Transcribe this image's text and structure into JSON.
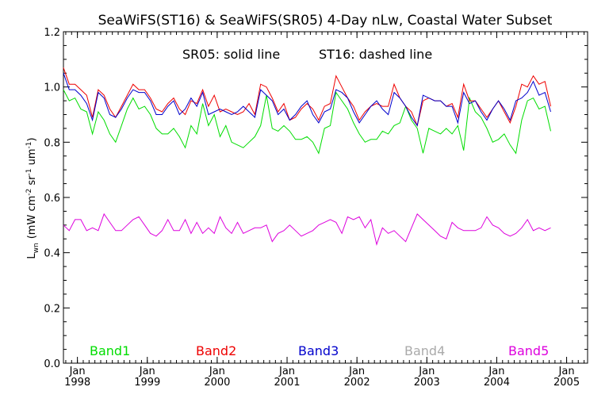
{
  "chart_data": {
    "type": "line",
    "title": "SeaWiFS(ST16) & SeaWiFS(SR05) 4-Day nLw, Coastal Water Subset",
    "annotation_solid": "SR05: solid line",
    "annotation_dashed": "ST16: dashed line",
    "ylabel": "L_wn (mW cm^-2 sr^-1 um^-1)",
    "ylabel_parts": {
      "L": "L",
      "wn": "wn",
      "unit_a": "(mW cm",
      "e2": "-2",
      "unit_b": " sr",
      "e1a": "-1",
      "unit_c": " um",
      "e1b": "-1",
      "close": ")"
    },
    "xlim": [
      1997.8,
      2005.3
    ],
    "ylim": [
      0.0,
      1.2
    ],
    "yticks": [
      "0.0",
      "0.2",
      "0.4",
      "0.6",
      "0.8",
      "1.0",
      "1.2"
    ],
    "ytick_values": [
      0.0,
      0.2,
      0.4,
      0.6,
      0.8,
      1.0,
      1.2
    ],
    "xticks_month": [
      "Jan",
      "Jan",
      "Jan",
      "Jan",
      "Jan",
      "Jan",
      "Jan",
      "Jan"
    ],
    "xticks_year": [
      "1998",
      "1999",
      "2000",
      "2001",
      "2002",
      "2003",
      "2004",
      "2005"
    ],
    "xtick_values": [
      1998,
      1999,
      2000,
      2001,
      2002,
      2003,
      2004,
      2005
    ],
    "x_start": 1997.8,
    "x_step": 0.083,
    "series": [
      {
        "name": "Band1",
        "color": "#00dd00",
        "values": [
          0.99,
          0.95,
          0.96,
          0.92,
          0.91,
          0.83,
          0.91,
          0.88,
          0.83,
          0.8,
          0.86,
          0.92,
          0.96,
          0.92,
          0.93,
          0.9,
          0.85,
          0.83,
          0.83,
          0.85,
          0.82,
          0.78,
          0.86,
          0.83,
          0.94,
          0.86,
          0.9,
          0.82,
          0.86,
          0.8,
          0.79,
          0.78,
          0.8,
          0.82,
          0.86,
          0.97,
          0.85,
          0.84,
          0.86,
          0.84,
          0.81,
          0.81,
          0.82,
          0.8,
          0.76,
          0.85,
          0.86,
          0.98,
          0.95,
          0.92,
          0.87,
          0.83,
          0.8,
          0.81,
          0.81,
          0.84,
          0.83,
          0.86,
          0.87,
          0.93,
          0.88,
          0.85,
          0.76,
          0.85,
          0.84,
          0.83,
          0.85,
          0.83,
          0.86,
          0.77,
          0.96,
          0.91,
          0.89,
          0.85,
          0.8,
          0.81,
          0.83,
          0.79,
          0.76,
          0.88,
          0.95,
          0.96,
          0.92,
          0.93,
          0.84
        ]
      },
      {
        "name": "Band2",
        "color": "#ee0000",
        "values": [
          1.07,
          1.01,
          1.01,
          0.99,
          0.97,
          0.89,
          0.99,
          0.97,
          0.92,
          0.89,
          0.93,
          0.97,
          1.01,
          0.99,
          0.99,
          0.96,
          0.92,
          0.91,
          0.94,
          0.96,
          0.92,
          0.9,
          0.95,
          0.94,
          0.99,
          0.93,
          0.97,
          0.91,
          0.92,
          0.91,
          0.9,
          0.91,
          0.94,
          0.9,
          1.01,
          1.0,
          0.96,
          0.91,
          0.94,
          0.88,
          0.89,
          0.92,
          0.94,
          0.92,
          0.88,
          0.93,
          0.94,
          1.04,
          1.0,
          0.96,
          0.93,
          0.88,
          0.91,
          0.93,
          0.94,
          0.93,
          0.93,
          1.01,
          0.96,
          0.93,
          0.91,
          0.86,
          0.95,
          0.96,
          0.95,
          0.95,
          0.93,
          0.94,
          0.89,
          1.01,
          0.95,
          0.95,
          0.92,
          0.89,
          0.92,
          0.95,
          0.91,
          0.87,
          0.93,
          1.01,
          1.0,
          1.04,
          1.01,
          1.02,
          0.93
        ]
      },
      {
        "name": "Band3",
        "color": "#0000cc",
        "values": [
          1.05,
          0.99,
          0.99,
          0.97,
          0.94,
          0.88,
          0.98,
          0.96,
          0.9,
          0.89,
          0.92,
          0.96,
          0.99,
          0.98,
          0.98,
          0.95,
          0.9,
          0.9,
          0.93,
          0.95,
          0.9,
          0.92,
          0.96,
          0.93,
          0.98,
          0.9,
          0.91,
          0.92,
          0.91,
          0.9,
          0.91,
          0.93,
          0.91,
          0.89,
          0.99,
          0.97,
          0.95,
          0.9,
          0.92,
          0.88,
          0.9,
          0.93,
          0.95,
          0.9,
          0.87,
          0.91,
          0.92,
          0.99,
          0.98,
          0.96,
          0.91,
          0.87,
          0.9,
          0.93,
          0.95,
          0.92,
          0.9,
          0.98,
          0.96,
          0.93,
          0.89,
          0.86,
          0.97,
          0.96,
          0.95,
          0.95,
          0.93,
          0.93,
          0.87,
          0.98,
          0.94,
          0.95,
          0.91,
          0.88,
          0.92,
          0.95,
          0.92,
          0.88,
          0.95,
          0.96,
          0.98,
          1.02,
          0.97,
          0.98,
          0.91
        ]
      },
      {
        "name": "Band4",
        "color": "#aaaaaa",
        "values": []
      },
      {
        "name": "Band5",
        "color": "#dd00dd",
        "values": [
          0.5,
          0.48,
          0.52,
          0.52,
          0.48,
          0.49,
          0.48,
          0.54,
          0.51,
          0.48,
          0.48,
          0.5,
          0.52,
          0.53,
          0.5,
          0.47,
          0.46,
          0.48,
          0.52,
          0.48,
          0.48,
          0.52,
          0.47,
          0.51,
          0.47,
          0.49,
          0.47,
          0.53,
          0.49,
          0.47,
          0.51,
          0.47,
          0.48,
          0.49,
          0.49,
          0.5,
          0.44,
          0.47,
          0.48,
          0.5,
          0.48,
          0.46,
          0.47,
          0.48,
          0.5,
          0.51,
          0.52,
          0.51,
          0.47,
          0.53,
          0.52,
          0.53,
          0.49,
          0.52,
          0.43,
          0.49,
          0.47,
          0.48,
          0.46,
          0.44,
          0.49,
          0.54,
          0.52,
          0.5,
          0.48,
          0.46,
          0.45,
          0.51,
          0.49,
          0.48,
          0.48,
          0.48,
          0.49,
          0.53,
          0.5,
          0.49,
          0.47,
          0.46,
          0.47,
          0.49,
          0.52,
          0.48,
          0.49,
          0.48,
          0.49
        ]
      }
    ],
    "legend": [
      "Band1",
      "Band2",
      "Band3",
      "Band4",
      "Band5"
    ],
    "grid": false
  }
}
